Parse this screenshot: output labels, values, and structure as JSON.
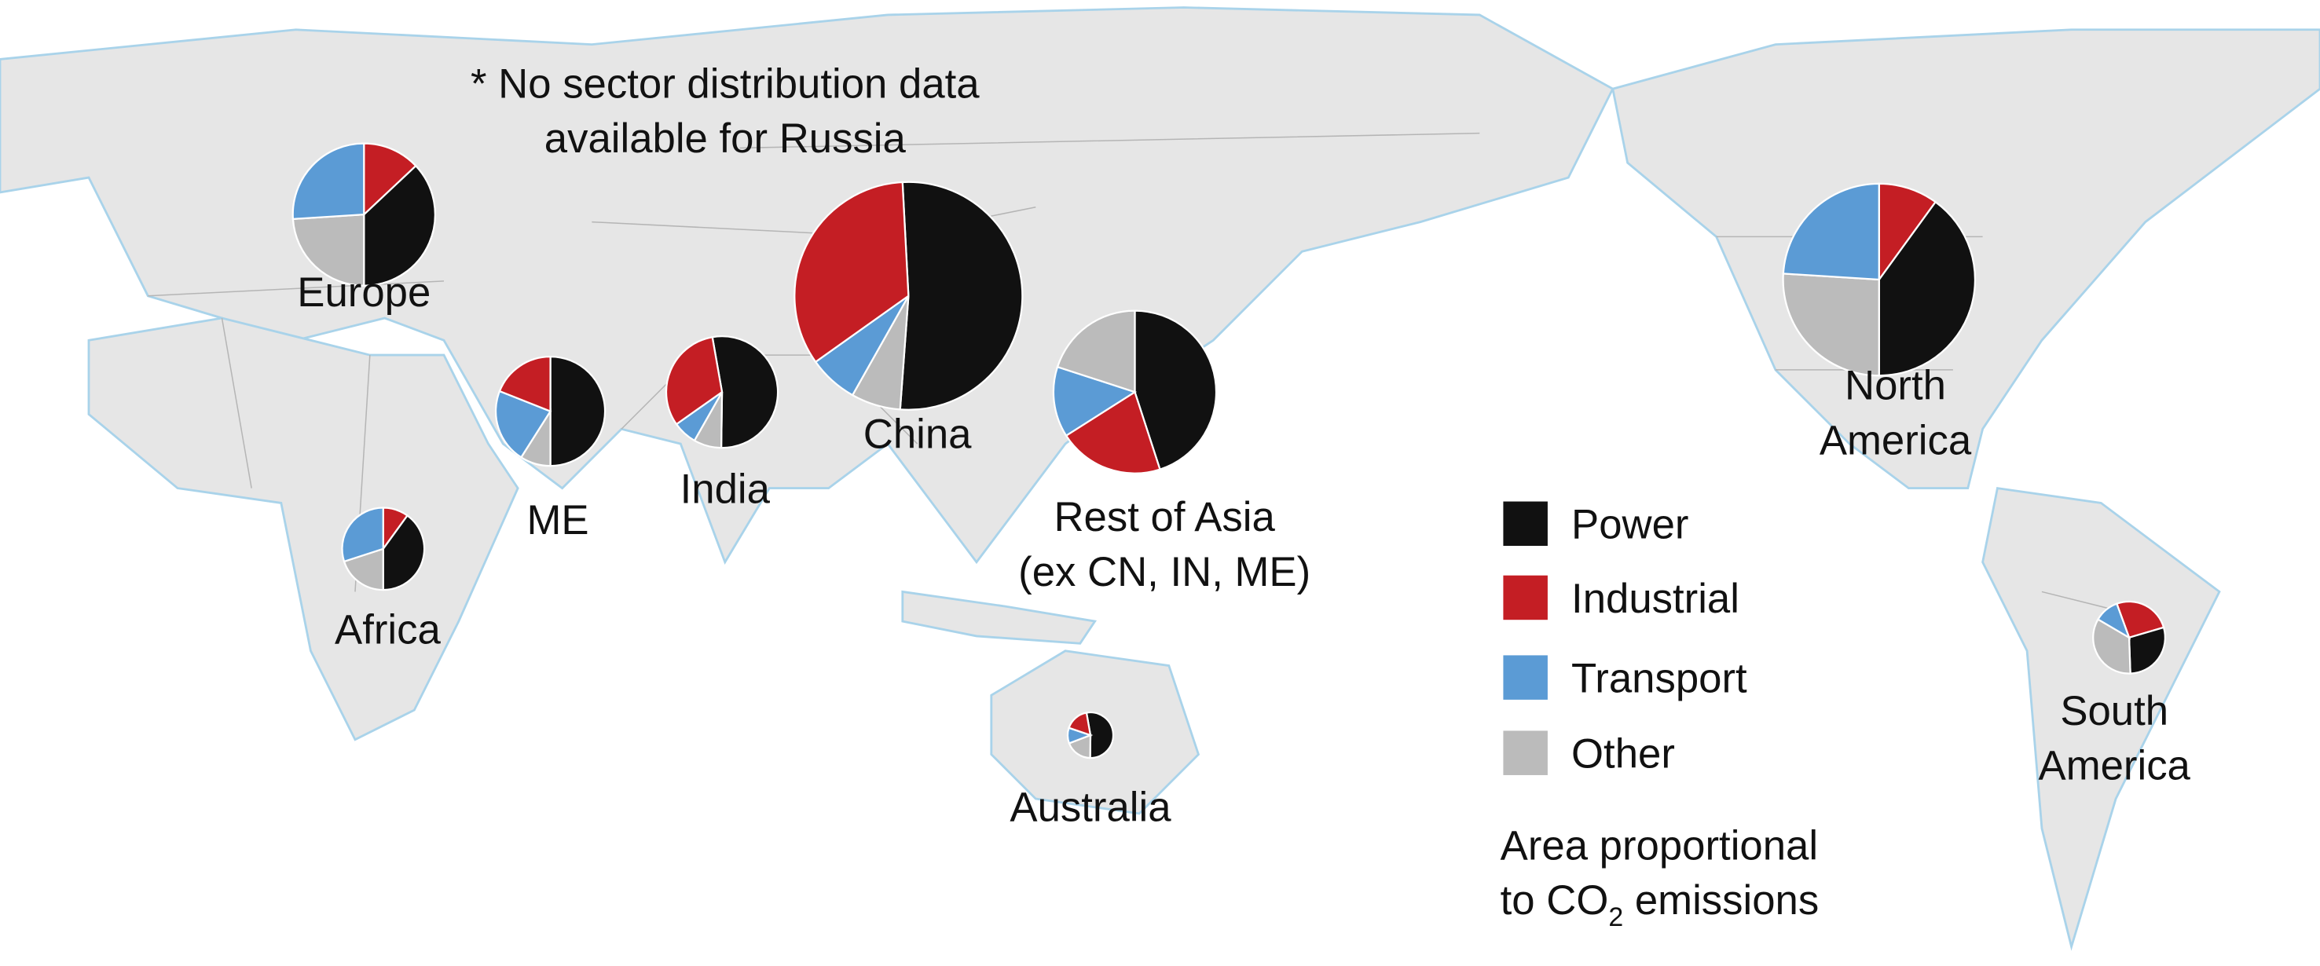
{
  "note": {
    "line1": "* No sector distribution data",
    "line2": "available for Russia"
  },
  "legend": {
    "items": [
      {
        "label": "Power",
        "color": "#111111"
      },
      {
        "label": "Industrial",
        "color": "#c41e24"
      },
      {
        "label": "Transport",
        "color": "#5b9bd5"
      },
      {
        "label": "Other",
        "color": "#bbbbbb"
      }
    ],
    "area_note_line1": "Area proportional",
    "area_note_line2_prefix": "to CO",
    "area_note_line2_sub": "2",
    "area_note_line2_suffix": " emissions"
  },
  "chart_data": {
    "type": "pie",
    "size_encoding": "area proportional to CO2 emissions (relative, China = 100, estimated)",
    "categories": [
      "Power",
      "Industrial",
      "Transport",
      "Other"
    ],
    "regions": [
      {
        "key": "europe",
        "label_lines": [
          "Europe"
        ],
        "relative_emissions": 39,
        "shares": {
          "Power": 37,
          "Industrial": 13,
          "Transport": 26,
          "Other": 24
        }
      },
      {
        "key": "me",
        "label_lines": [
          "ME"
        ],
        "relative_emissions": 23,
        "shares": {
          "Power": 50,
          "Industrial": 19,
          "Transport": 22,
          "Other": 9
        }
      },
      {
        "key": "india",
        "label_lines": [
          "India"
        ],
        "relative_emissions": 24,
        "shares": {
          "Power": 53,
          "Industrial": 32,
          "Transport": 7,
          "Other": 8
        }
      },
      {
        "key": "china",
        "label_lines": [
          "China"
        ],
        "relative_emissions": 100,
        "shares": {
          "Power": 52,
          "Industrial": 34,
          "Transport": 7,
          "Other": 7
        }
      },
      {
        "key": "rest_of_asia",
        "label_lines": [
          "Rest of Asia",
          "(ex CN, IN, ME)"
        ],
        "relative_emissions": 51,
        "shares": {
          "Power": 45,
          "Industrial": 21,
          "Transport": 14,
          "Other": 20
        }
      },
      {
        "key": "africa",
        "label_lines": [
          "Africa"
        ],
        "relative_emissions": 13,
        "shares": {
          "Power": 40,
          "Industrial": 10,
          "Transport": 30,
          "Other": 20
        }
      },
      {
        "key": "australia",
        "label_lines": [
          "Australia"
        ],
        "relative_emissions": 4,
        "shares": {
          "Power": 53,
          "Industrial": 17,
          "Transport": 11,
          "Other": 19
        }
      },
      {
        "key": "north_america",
        "label_lines": [
          "North",
          "America"
        ],
        "relative_emissions": 71,
        "shares": {
          "Power": 40,
          "Industrial": 10,
          "Transport": 24,
          "Other": 26
        }
      },
      {
        "key": "south_america",
        "label_lines": [
          "South",
          "America"
        ],
        "relative_emissions": 10,
        "shares": {
          "Power": 29,
          "Industrial": 26,
          "Transport": 11,
          "Other": 34
        }
      }
    ]
  }
}
